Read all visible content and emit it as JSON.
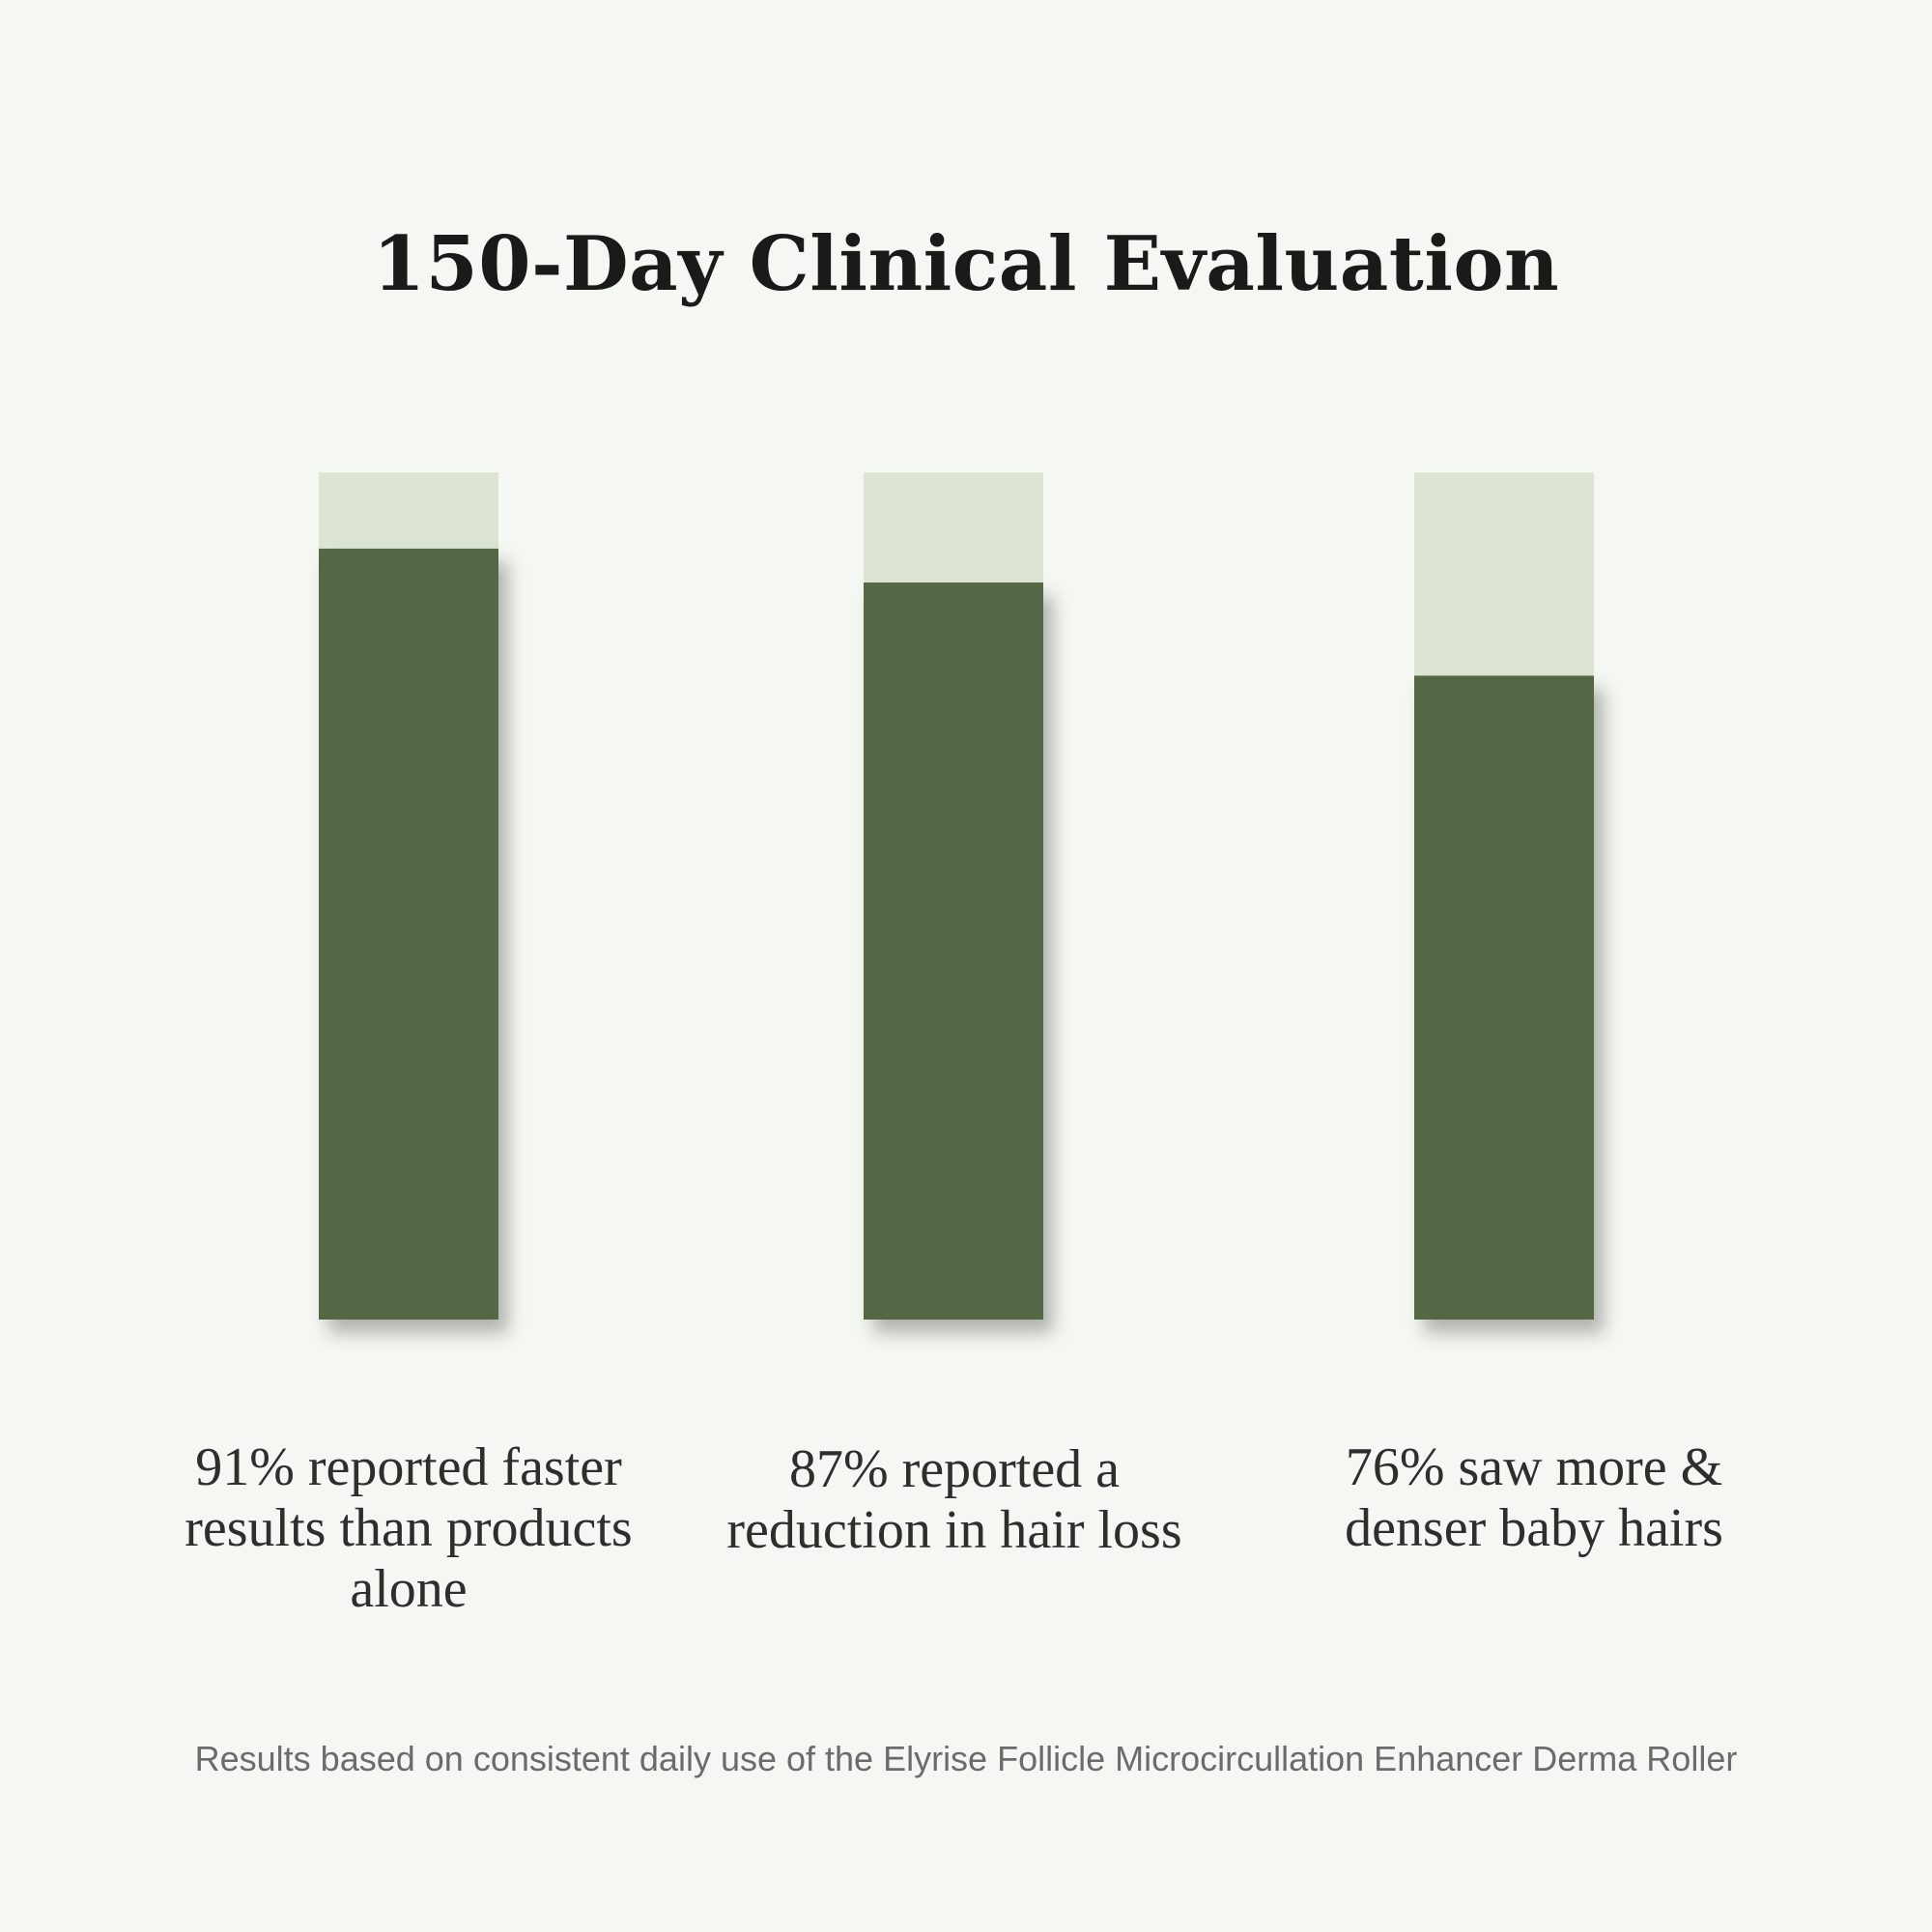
{
  "chart_data": {
    "type": "bar",
    "title": "150-Day Clinical Evaluation",
    "categories": [
      "91% reported faster results than products alone",
      "87% reported a reduction in hair loss",
      "76% saw more & denser baby hairs"
    ],
    "values": [
      91,
      87,
      76
    ],
    "ylim": [
      0,
      100
    ],
    "unit": "%",
    "xlabel": "",
    "ylabel": "",
    "grid": false,
    "legend": "none"
  },
  "colors": {
    "background": "#f5f7f2",
    "bar_fill": "#546844",
    "bar_track": "#dce5d4"
  },
  "footnote": "Results based on consistent daily use of the Elyrise Follicle Microcircullation Enhancer Derma Roller"
}
